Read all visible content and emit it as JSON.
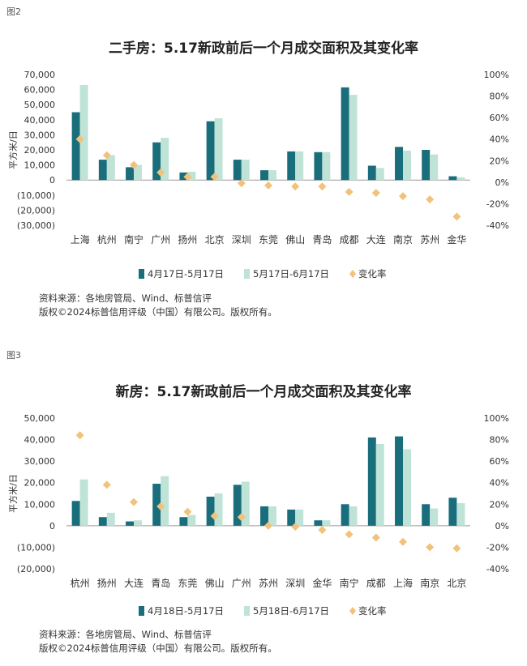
{
  "figures": [
    {
      "label": "图2",
      "title": "二手房：5.17新政前后一个月成交面积及其变化率",
      "note_source": "资料来源：各地房管局、Wind、标普信评",
      "note_copyright": "版权©2024标普信用评级（中国）有限公司。版权所有。"
    },
    {
      "label": "图3",
      "title": "新房：5.17新政前后一个月成交面积及其变化率",
      "note_source": "资料来源：各地房管局、Wind、标普信评",
      "note_copyright": "版权©2024标普信用评级（中国）有限公司。版权所有。"
    }
  ],
  "colors": {
    "series1": "#1a6e7c",
    "series2": "#bfe3d6",
    "rate": "#f2c27b",
    "axis": "#999999",
    "text": "#333333"
  },
  "chart_data": [
    {
      "type": "bar",
      "title": "二手房：5.17新政前后一个月成交面积及其变化率",
      "ylabel": "平方米/日",
      "ylim": [
        -30000,
        70000
      ],
      "y_ticks": [
        "(30,000)",
        "(20,000)",
        "(10,000)",
        "0",
        "10,000",
        "20,000",
        "30,000",
        "40,000",
        "50,000",
        "60,000",
        "70,000"
      ],
      "y2lim": [
        -40,
        100
      ],
      "y2_ticks": [
        "-40%",
        "-20%",
        "0%",
        "20%",
        "40%",
        "60%",
        "80%",
        "100%"
      ],
      "categories": [
        "上海",
        "杭州",
        "南宁",
        "广州",
        "扬州",
        "北京",
        "深圳",
        "东莞",
        "佛山",
        "青岛",
        "成都",
        "大连",
        "南京",
        "苏州",
        "金华"
      ],
      "series": [
        {
          "name": "4月17日-5月17日",
          "values": [
            45000,
            13500,
            8500,
            25000,
            5000,
            39000,
            13500,
            6500,
            19000,
            18500,
            61500,
            9500,
            22000,
            20000,
            2500
          ]
        },
        {
          "name": "5月17日-6月17日",
          "values": [
            63000,
            16500,
            10000,
            28000,
            5500,
            41000,
            13500,
            6500,
            19000,
            18500,
            56500,
            8000,
            19500,
            17000,
            1800
          ]
        },
        {
          "name": "变化率",
          "axis": "right",
          "kind": "scatter",
          "values": [
            40,
            25,
            16,
            9,
            5,
            5,
            -1,
            -3,
            -4,
            -4,
            -9,
            -10,
            -13,
            -16,
            -32
          ]
        }
      ],
      "legend": "bottom"
    },
    {
      "type": "bar",
      "title": "新房：5.17新政前后一个月成交面积及其变化率",
      "ylabel": "平方米/日",
      "ylim": [
        -20000,
        50000
      ],
      "y_ticks": [
        "(20,000)",
        "(10,000)",
        "0",
        "10,000",
        "20,000",
        "30,000",
        "40,000",
        "50,000"
      ],
      "y2lim": [
        -40,
        100
      ],
      "y2_ticks": [
        "-40%",
        "-20%",
        "0%",
        "20%",
        "40%",
        "60%",
        "80%",
        "100%"
      ],
      "categories": [
        "杭州",
        "扬州",
        "大连",
        "青岛",
        "东莞",
        "佛山",
        "广州",
        "苏州",
        "深圳",
        "金华",
        "南宁",
        "成都",
        "上海",
        "南京",
        "北京"
      ],
      "series": [
        {
          "name": "4月18日-5月17日",
          "values": [
            11500,
            4000,
            2000,
            19500,
            4000,
            13500,
            19000,
            9000,
            7500,
            2500,
            10000,
            41000,
            41500,
            10000,
            13000
          ]
        },
        {
          "name": "5月18日-6月17日",
          "values": [
            21500,
            6000,
            2500,
            23000,
            5000,
            15000,
            20500,
            9000,
            7500,
            2500,
            9000,
            38000,
            35500,
            8000,
            10500
          ]
        },
        {
          "name": "变化率",
          "axis": "right",
          "kind": "scatter",
          "values": [
            84,
            38,
            22,
            18,
            13,
            9,
            8,
            0,
            -1,
            -4,
            -8,
            -11,
            -15,
            -20,
            -21
          ]
        }
      ],
      "legend": "bottom"
    }
  ]
}
